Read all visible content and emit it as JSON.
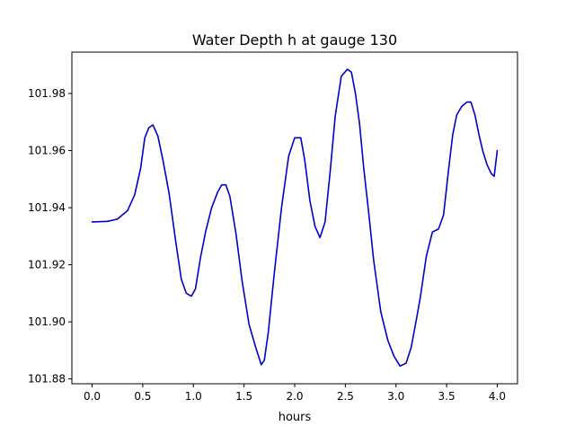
{
  "chart_data": {
    "type": "line",
    "title": "Water Depth h at gauge 130",
    "xlabel": "hours",
    "ylabel": "",
    "xlim": [
      -0.2,
      4.2
    ],
    "ylim": [
      101.8783,
      101.9945
    ],
    "xticks": [
      0.0,
      0.5,
      1.0,
      1.5,
      2.0,
      2.5,
      3.0,
      3.5,
      4.0
    ],
    "xtick_labels": [
      "0.0",
      "0.5",
      "1.0",
      "1.5",
      "2.0",
      "2.5",
      "3.0",
      "3.5",
      "4.0"
    ],
    "yticks": [
      101.88,
      101.9,
      101.92,
      101.94,
      101.96,
      101.98
    ],
    "ytick_labels": [
      "101.88",
      "101.90",
      "101.92",
      "101.94",
      "101.96",
      "101.98"
    ],
    "grid": false,
    "legend": "none",
    "series": [
      {
        "color": "#0000cc",
        "x": [
          0.0,
          0.15,
          0.25,
          0.35,
          0.42,
          0.48,
          0.52,
          0.56,
          0.6,
          0.65,
          0.7,
          0.76,
          0.82,
          0.88,
          0.93,
          0.98,
          1.02,
          1.07,
          1.12,
          1.18,
          1.24,
          1.28,
          1.32,
          1.36,
          1.42,
          1.48,
          1.55,
          1.62,
          1.67,
          1.7,
          1.74,
          1.8,
          1.87,
          1.94,
          2.0,
          2.06,
          2.1,
          2.15,
          2.2,
          2.25,
          2.3,
          2.35,
          2.4,
          2.46,
          2.52,
          2.56,
          2.6,
          2.64,
          2.68,
          2.73,
          2.78,
          2.85,
          2.92,
          2.98,
          3.04,
          3.1,
          3.15,
          3.2,
          3.24,
          3.3,
          3.36,
          3.42,
          3.47,
          3.52,
          3.56,
          3.6,
          3.65,
          3.7,
          3.74,
          3.78,
          3.82,
          3.86,
          3.9,
          3.94,
          3.97,
          4.0
        ],
        "y": [
          101.935,
          101.9352,
          101.936,
          101.939,
          101.9445,
          101.954,
          101.9645,
          101.968,
          101.969,
          101.965,
          101.9565,
          101.945,
          101.9295,
          101.915,
          101.91,
          101.909,
          101.9115,
          101.9225,
          101.9315,
          101.94,
          101.9455,
          101.948,
          101.948,
          101.944,
          101.931,
          101.9145,
          101.899,
          101.8905,
          101.885,
          101.8865,
          101.8965,
          101.9175,
          101.94,
          101.958,
          101.9645,
          101.9645,
          101.9565,
          101.9425,
          101.9335,
          101.9295,
          101.935,
          101.9525,
          101.972,
          101.986,
          101.9885,
          101.9875,
          101.98,
          101.9695,
          101.9545,
          101.9385,
          101.9215,
          101.9035,
          101.8935,
          101.888,
          101.8845,
          101.8855,
          101.891,
          101.9005,
          101.9085,
          101.923,
          101.9315,
          101.9325,
          101.9375,
          101.9535,
          101.9655,
          101.9725,
          101.9755,
          101.977,
          101.977,
          101.9725,
          101.9655,
          101.9595,
          101.955,
          101.952,
          101.951,
          101.96
        ]
      }
    ]
  }
}
